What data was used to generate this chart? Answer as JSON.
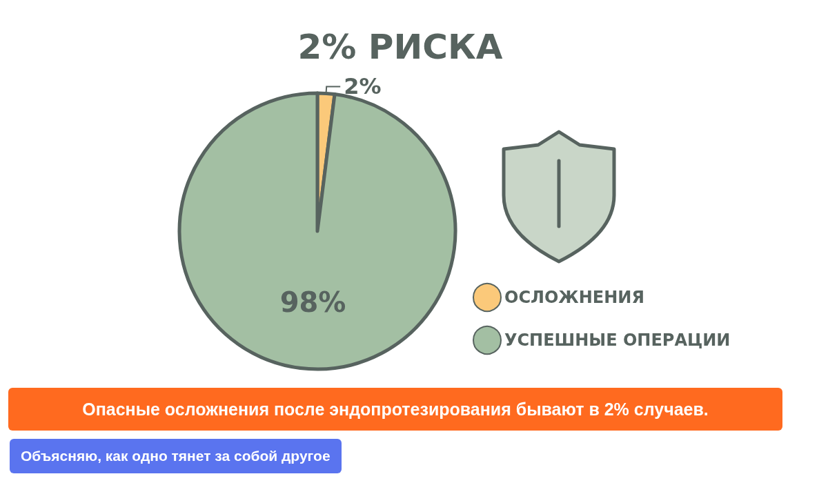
{
  "chart_data": {
    "type": "pie",
    "title": "2% РИСКА",
    "categories": [
      "ОСЛОЖНЕНИЯ",
      "УСПЕШНЫЕ ОПЕРАЦИИ"
    ],
    "values": [
      2,
      98
    ],
    "colors": [
      "#fbc97a",
      "#a3bfa3"
    ],
    "value_labels": [
      "2%",
      "98%"
    ],
    "legend": "right",
    "annotations": [
      "Опасные осложнения после эндопротезирования бывают в 2% случаев.",
      "Объясняю, как одно тянет за собой другое"
    ]
  }
}
